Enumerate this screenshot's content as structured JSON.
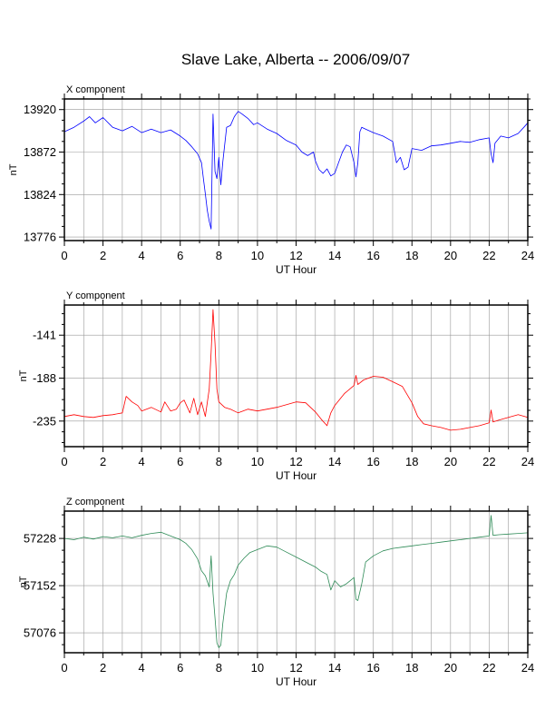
{
  "title": "Slave Lake, Alberta -- 2006/09/07",
  "chart_data": [
    {
      "type": "line",
      "panel_title": "X component",
      "xlabel": "UT Hour",
      "ylabel": "nT",
      "xlim": [
        0,
        24
      ],
      "ylim": [
        13772,
        13932
      ],
      "xticks": [
        0,
        2,
        4,
        6,
        8,
        10,
        12,
        14,
        16,
        18,
        20,
        22,
        24
      ],
      "yticks": [
        13776,
        13824,
        13872,
        13920
      ],
      "grid": true,
      "color": "#0000ff",
      "series": [
        {
          "x": [
            0,
            0.5,
            1,
            1.3,
            1.6,
            2,
            2.5,
            3,
            3.5,
            4,
            4.5,
            5,
            5.5,
            6,
            6.3,
            6.6,
            6.9,
            7.1,
            7.2,
            7.3,
            7.4,
            7.5,
            7.6,
            7.7,
            7.8,
            7.9,
            8,
            8.1,
            8.2,
            8.4,
            8.6,
            8.8,
            9,
            9.2,
            9.5,
            9.8,
            10,
            10.5,
            11,
            11.5,
            12,
            12.3,
            12.6,
            12.9,
            13,
            13.2,
            13.4,
            13.6,
            13.8,
            14,
            14.2,
            14.4,
            14.6,
            14.8,
            15,
            15.1,
            15.2,
            15.3,
            15.4,
            15.6,
            16,
            16.5,
            17,
            17.2,
            17.4,
            17.6,
            17.8,
            18,
            18.5,
            19,
            19.5,
            20,
            20.5,
            21,
            21.5,
            22,
            22.1,
            22.2,
            22.3,
            22.6,
            23,
            23.5,
            23.8,
            24
          ],
          "y": [
            13895,
            13900,
            13907,
            13912,
            13905,
            13911,
            13900,
            13896,
            13901,
            13894,
            13898,
            13894,
            13897,
            13890,
            13885,
            13878,
            13870,
            13860,
            13842,
            13825,
            13806,
            13794,
            13785,
            13915,
            13850,
            13842,
            13866,
            13835,
            13860,
            13900,
            13902,
            13912,
            13918,
            13915,
            13910,
            13903,
            13905,
            13898,
            13893,
            13885,
            13880,
            13872,
            13868,
            13872,
            13862,
            13852,
            13848,
            13853,
            13845,
            13848,
            13860,
            13872,
            13880,
            13878,
            13860,
            13844,
            13860,
            13895,
            13900,
            13898,
            13894,
            13890,
            13884,
            13860,
            13866,
            13852,
            13855,
            13876,
            13874,
            13879,
            13880,
            13882,
            13884,
            13883,
            13886,
            13888,
            13870,
            13860,
            13882,
            13890,
            13888,
            13893,
            13900,
            13905
          ]
        }
      ]
    },
    {
      "type": "line",
      "panel_title": "Y component",
      "xlabel": "UT Hour",
      "ylabel": "nT",
      "xlim": [
        0,
        24
      ],
      "ylim": [
        -263,
        -108
      ],
      "xticks": [
        0,
        2,
        4,
        6,
        8,
        10,
        12,
        14,
        16,
        18,
        20,
        22,
        24
      ],
      "yticks": [
        -235,
        -188,
        -141
      ],
      "grid": true,
      "color": "#ff0000",
      "series": [
        {
          "x": [
            0,
            0.5,
            1,
            1.5,
            2,
            2.5,
            3,
            3.2,
            3.5,
            3.8,
            4,
            4.5,
            5,
            5.2,
            5.5,
            5.8,
            6,
            6.2,
            6.5,
            6.7,
            6.9,
            7.1,
            7.3,
            7.5,
            7.6,
            7.7,
            7.8,
            7.9,
            8,
            8.3,
            8.6,
            9,
            9.5,
            10,
            10.5,
            11,
            11.5,
            12,
            12.5,
            13,
            13.3,
            13.6,
            13.8,
            14,
            14.5,
            15,
            15.1,
            15.2,
            15.5,
            16,
            16.5,
            17,
            17.5,
            18,
            18.3,
            18.6,
            19,
            19.5,
            20,
            20.5,
            21,
            21.5,
            22,
            22.1,
            22.2,
            22.5,
            23,
            23.5,
            24
          ],
          "y": [
            -230,
            -228,
            -230,
            -231,
            -229,
            -228,
            -226,
            -208,
            -214,
            -218,
            -224,
            -220,
            -225,
            -214,
            -224,
            -222,
            -215,
            -212,
            -226,
            -210,
            -228,
            -214,
            -230,
            -200,
            -160,
            -113,
            -150,
            -200,
            -214,
            -220,
            -222,
            -226,
            -222,
            -224,
            -222,
            -220,
            -217,
            -214,
            -215,
            -225,
            -233,
            -240,
            -226,
            -218,
            -205,
            -196,
            -185,
            -195,
            -190,
            -186,
            -187,
            -192,
            -197,
            -215,
            -230,
            -238,
            -240,
            -242,
            -245,
            -244,
            -242,
            -240,
            -237,
            -223,
            -236,
            -234,
            -231,
            -228,
            -231
          ]
        }
      ]
    },
    {
      "type": "line",
      "panel_title": "Z component",
      "xlabel": "UT Hour",
      "ylabel": "nT",
      "xlim": [
        0,
        24
      ],
      "ylim": [
        57044,
        57272
      ],
      "xticks": [
        0,
        2,
        4,
        6,
        8,
        10,
        12,
        14,
        16,
        18,
        20,
        22,
        24
      ],
      "yticks": [
        57076,
        57152,
        57228
      ],
      "grid": true,
      "color": "#2e8b57",
      "series": [
        {
          "x": [
            0,
            0.5,
            1,
            1.5,
            2,
            2.5,
            3,
            3.5,
            4,
            4.5,
            5,
            5.5,
            6,
            6.3,
            6.6,
            6.9,
            7.1,
            7.3,
            7.5,
            7.6,
            7.7,
            7.8,
            7.9,
            8,
            8.1,
            8.2,
            8.4,
            8.6,
            8.8,
            9,
            9.3,
            9.6,
            10,
            10.5,
            11,
            11.5,
            12,
            12.5,
            13,
            13.3,
            13.6,
            13.8,
            14,
            14.3,
            14.6,
            15,
            15.1,
            15.2,
            15.4,
            15.6,
            16,
            16.5,
            17,
            17.5,
            18,
            18.5,
            19,
            19.5,
            20,
            20.5,
            21,
            21.5,
            22,
            22.1,
            22.2,
            22.5,
            23,
            23.5,
            24
          ],
          "y": [
            57228,
            57226,
            57230,
            57227,
            57231,
            57229,
            57232,
            57229,
            57233,
            57236,
            57238,
            57232,
            57226,
            57220,
            57210,
            57195,
            57176,
            57168,
            57150,
            57200,
            57140,
            57100,
            57060,
            57052,
            57056,
            57090,
            57140,
            57160,
            57170,
            57185,
            57196,
            57205,
            57210,
            57216,
            57214,
            57206,
            57198,
            57190,
            57182,
            57175,
            57170,
            57145,
            57160,
            57150,
            57155,
            57165,
            57130,
            57128,
            57155,
            57190,
            57200,
            57208,
            57212,
            57214,
            57216,
            57218,
            57220,
            57222,
            57224,
            57226,
            57228,
            57230,
            57232,
            57265,
            57233,
            57234,
            57235,
            57236,
            57237
          ]
        }
      ]
    }
  ]
}
